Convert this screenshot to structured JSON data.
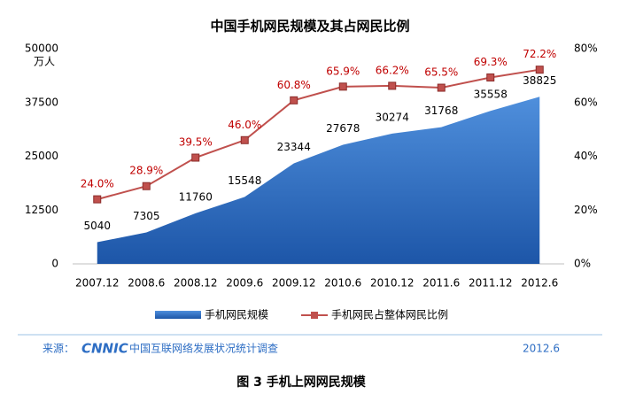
{
  "chart_data": {
    "type": "combo",
    "title": "中国手机网民规模及其占网民比例",
    "y_unit": "万人",
    "categories": [
      "2007.12",
      "2008.6",
      "2008.12",
      "2009.6",
      "2009.12",
      "2010.6",
      "2010.12",
      "2011.6",
      "2011.12",
      "2012.6"
    ],
    "series": [
      {
        "name": "手机网民规模",
        "type": "area",
        "axis": "y",
        "color": "#2e6ec4",
        "values": [
          5040,
          7305,
          11760,
          15548,
          23344,
          27678,
          30274,
          31768,
          35558,
          38825
        ]
      },
      {
        "name": "手机网民占整体网民比例",
        "type": "line",
        "axis": "y2",
        "color": "#c0504d",
        "values": [
          24.0,
          28.9,
          39.5,
          46.0,
          60.8,
          65.9,
          66.2,
          65.5,
          69.3,
          72.2
        ],
        "value_labels": [
          "24.0%",
          "28.9%",
          "39.5%",
          "46.0%",
          "60.8%",
          "65.9%",
          "66.2%",
          "65.5%",
          "69.3%",
          "72.2%"
        ]
      }
    ],
    "ylim": [
      0,
      50000
    ],
    "yticks": [
      0,
      12500,
      25000,
      37500,
      50000
    ],
    "y2lim": [
      0,
      80
    ],
    "y2ticks": [
      {
        "value": 0,
        "label": "0%"
      },
      {
        "value": 20,
        "label": "20%"
      },
      {
        "value": 40,
        "label": "40%"
      },
      {
        "value": 60,
        "label": "60%"
      },
      {
        "value": 80,
        "label": "80%"
      }
    ],
    "legend": "bottom"
  },
  "footer": {
    "label": "来源：",
    "logo": "CNNIC",
    "text": "中国互联网络发展状况统计调查",
    "date": "2012.6"
  },
  "caption": "图 3  手机上网网民规模"
}
